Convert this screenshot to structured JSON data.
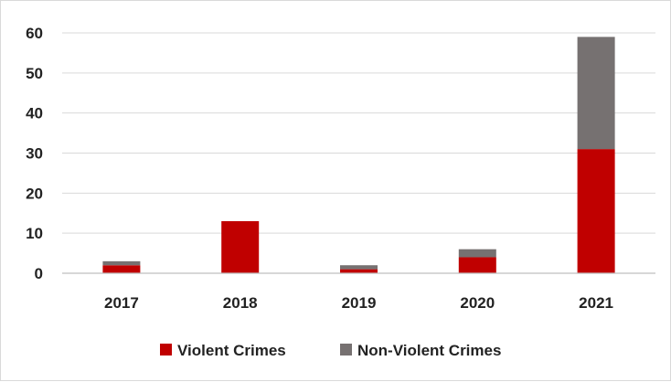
{
  "chart_data": {
    "type": "bar",
    "stacked": true,
    "categories": [
      "2017",
      "2018",
      "2019",
      "2020",
      "2021"
    ],
    "series": [
      {
        "name": "Violent Crimes",
        "color": "#c00000",
        "values": [
          2,
          13,
          1,
          4,
          31
        ]
      },
      {
        "name": "Non-Violent Crimes",
        "color": "#767171",
        "values": [
          1,
          0,
          1,
          2,
          28
        ]
      }
    ],
    "ylim": [
      0,
      60
    ],
    "yticks": [
      "0",
      "10",
      "20",
      "30",
      "40",
      "50",
      "60"
    ],
    "grid": true,
    "legend_position": "bottom"
  }
}
